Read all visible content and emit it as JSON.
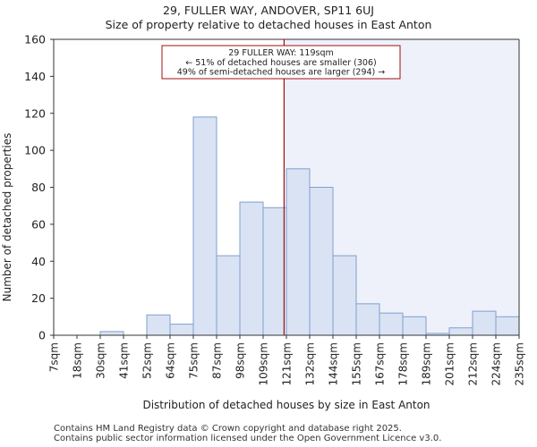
{
  "header": {
    "title_line1": "29, FULLER WAY, ANDOVER, SP11 6UJ",
    "title_line2": "Size of property relative to detached houses in East Anton"
  },
  "footer": {
    "line1": "Contains HM Land Registry data © Crown copyright and database right 2025.",
    "line2": "Contains public sector information licensed under the Open Government Licence v3.0."
  },
  "chart_data": {
    "type": "bar",
    "title": "29, FULLER WAY, ANDOVER, SP11 6UJ",
    "subtitle": "Size of property relative to detached houses in East Anton",
    "xlabel": "Distribution of detached houses by size in East Anton",
    "ylabel": "Number of detached properties",
    "ylim": [
      0,
      160
    ],
    "yticks": [
      0,
      20,
      40,
      60,
      80,
      100,
      120,
      140,
      160
    ],
    "tick_labels": [
      "7sqm",
      "18sqm",
      "30sqm",
      "41sqm",
      "52sqm",
      "64sqm",
      "75sqm",
      "87sqm",
      "98sqm",
      "109sqm",
      "121sqm",
      "132sqm",
      "144sqm",
      "155sqm",
      "167sqm",
      "178sqm",
      "189sqm",
      "201sqm",
      "212sqm",
      "224sqm",
      "235sqm"
    ],
    "values": [
      0,
      0,
      2,
      0,
      11,
      6,
      118,
      43,
      72,
      69,
      90,
      80,
      43,
      17,
      12,
      10,
      1,
      4,
      13,
      10
    ],
    "bar_color": "#dae3f3",
    "bar_edge_color": "#7f9fd0",
    "highlight_bg_color": "#eef1fa",
    "property_marker": {
      "bin_position": 9.9,
      "color": "#a01010",
      "label": "29 FULLER WAY: 119sqm",
      "line2": "← 51% of detached houses are smaller (306)",
      "line3": "49% of semi-detached houses are larger (294) →"
    },
    "grid": false
  }
}
